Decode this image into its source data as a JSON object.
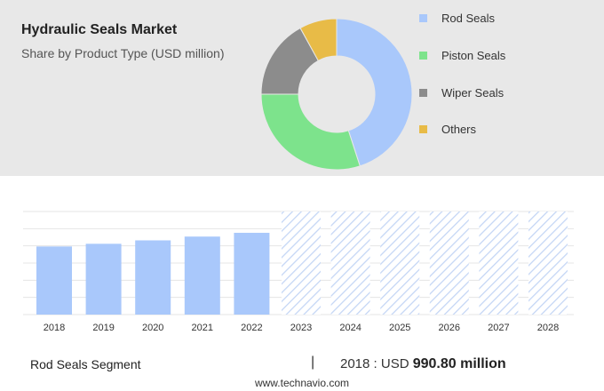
{
  "header": {
    "title": "Hydraulic Seals Market",
    "subtitle": "Share by Product Type (USD million)"
  },
  "legend": [
    {
      "label": "Rod Seals",
      "color": "#a9c8fb"
    },
    {
      "label": "Piston Seals",
      "color": "#7de38c"
    },
    {
      "label": "Wiper Seals",
      "color": "#8c8c8c"
    },
    {
      "label": "Others",
      "color": "#e8bb47"
    }
  ],
  "footer": {
    "segment": "Rod Seals Segment",
    "separator": "|",
    "year_label": "2018 : USD",
    "value_text": "990.80 million",
    "site": "www.technavio.com"
  },
  "chart_data": [
    {
      "type": "pie",
      "donut": true,
      "title": "Share by Product Type (USD million)",
      "categories": [
        "Rod Seals",
        "Piston Seals",
        "Wiper Seals",
        "Others"
      ],
      "values": [
        45,
        30,
        17,
        8
      ],
      "colors": [
        "#a9c8fb",
        "#7de38c",
        "#8c8c8c",
        "#e8bb47"
      ]
    },
    {
      "type": "bar",
      "categories": [
        "2018",
        "2019",
        "2020",
        "2021",
        "2022",
        "2023",
        "2024",
        "2025",
        "2026",
        "2027",
        "2028"
      ],
      "values": [
        990.8,
        1030,
        1080,
        1135,
        1190,
        null,
        null,
        null,
        null,
        null,
        null
      ],
      "forecast": [
        false,
        false,
        false,
        false,
        false,
        true,
        true,
        true,
        true,
        true,
        true
      ],
      "ylim": [
        0,
        1500
      ],
      "grid": true,
      "bar_color": "#a9c8fb",
      "forecast_color": "#c3d5f5"
    }
  ]
}
